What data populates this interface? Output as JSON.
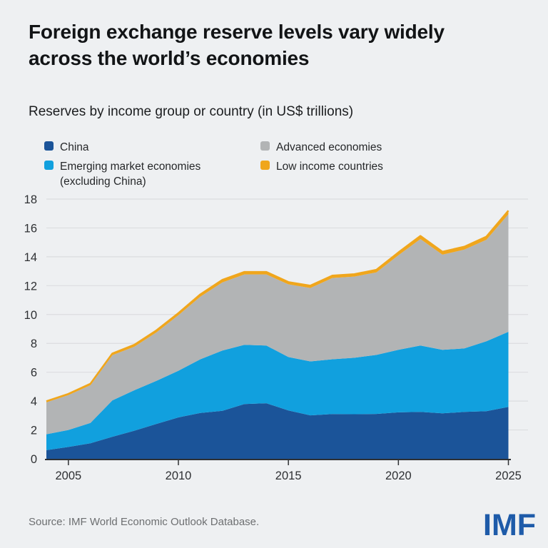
{
  "header": {
    "title": "Foreign exchange reserve levels vary widely across the world’s economies",
    "subtitle": "Reserves by income group or country (in US$ trillions)"
  },
  "legend": {
    "items": [
      {
        "label": "China",
        "color": "#1b5499"
      },
      {
        "label": "Emerging market economies (excluding China)",
        "color": "#11a0de"
      },
      {
        "label": "Advanced economies",
        "color": "#b2b4b5"
      },
      {
        "label": "Low income countries",
        "color": "#f0a61c"
      }
    ]
  },
  "chart_data": {
    "type": "area",
    "stacked": true,
    "title": "Reserves by income group or country (in US$ trillions)",
    "x": [
      2004,
      2005,
      2006,
      2007,
      2008,
      2009,
      2010,
      2011,
      2012,
      2013,
      2014,
      2015,
      2016,
      2017,
      2018,
      2019,
      2020,
      2021,
      2022,
      2023,
      2024,
      2025
    ],
    "series": [
      {
        "name": "China",
        "color": "#1b5499",
        "values": [
          0.6,
          0.82,
          1.08,
          1.53,
          1.95,
          2.42,
          2.87,
          3.18,
          3.33,
          3.8,
          3.85,
          3.35,
          3.01,
          3.1,
          3.09,
          3.11,
          3.22,
          3.25,
          3.15,
          3.25,
          3.3,
          3.6
        ]
      },
      {
        "name": "Emerging market economies (excluding China)",
        "color": "#11a0de",
        "values": [
          1.1,
          1.18,
          1.4,
          2.52,
          2.8,
          2.98,
          3.23,
          3.72,
          4.17,
          4.1,
          4.0,
          3.7,
          3.74,
          3.8,
          3.91,
          4.09,
          4.33,
          4.6,
          4.4,
          4.4,
          4.85,
          5.2
        ]
      },
      {
        "name": "Advanced economies",
        "color": "#b2b4b5",
        "values": [
          2.21,
          2.41,
          2.62,
          3.13,
          3.02,
          3.36,
          3.85,
          4.34,
          4.73,
          4.88,
          4.93,
          5.04,
          5.09,
          5.63,
          5.63,
          5.72,
          6.56,
          7.38,
          6.6,
          6.85,
          7.03,
          8.15
        ]
      },
      {
        "name": "Low income countries",
        "color": "#f0a61c",
        "values": [
          0.08,
          0.09,
          0.1,
          0.12,
          0.13,
          0.14,
          0.15,
          0.16,
          0.17,
          0.17,
          0.17,
          0.16,
          0.16,
          0.17,
          0.17,
          0.18,
          0.19,
          0.22,
          0.2,
          0.2,
          0.22,
          0.25
        ]
      }
    ],
    "totals": [
      3.99,
      4.5,
      5.2,
      7.3,
      7.9,
      8.9,
      10.1,
      11.4,
      12.4,
      12.95,
      12.95,
      12.25,
      12.0,
      12.7,
      12.8,
      13.1,
      14.3,
      15.45,
      14.35,
      14.7,
      15.4,
      17.2
    ],
    "ylim": [
      0,
      18
    ],
    "yticks": [
      0,
      2,
      4,
      6,
      8,
      10,
      12,
      14,
      16,
      18
    ],
    "xticks": [
      2005,
      2010,
      2015,
      2020,
      2025
    ],
    "grid": true,
    "legend_position": "top"
  },
  "footer": {
    "source": "Source: IMF World Economic Outlook Database.",
    "logo": "IMF"
  }
}
